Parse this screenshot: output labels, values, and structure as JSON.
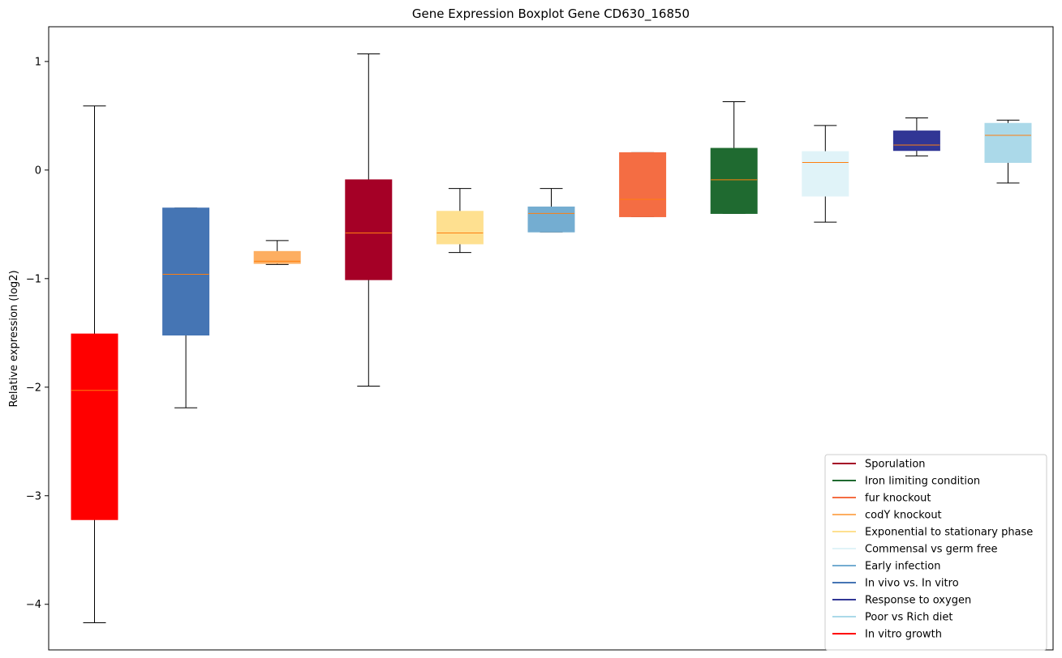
{
  "chart_data": {
    "type": "boxplot",
    "title": "Gene Expression Boxplot Gene CD630_16850",
    "xlabel": "",
    "ylabel": "Relative expression (log2)",
    "ylim": [
      -4.42,
      1.32
    ],
    "yticks": [
      1,
      0,
      -1,
      -2,
      -3,
      -4
    ],
    "ytick_labels": [
      "1",
      "0",
      "−1",
      "−2",
      "−3",
      "−4"
    ],
    "grid": false,
    "median_color": "#ff7f0e",
    "legend_position": "lower-right",
    "boxes": [
      {
        "name": "In vitro growth",
        "color": "#ff0000",
        "whisker_low": -4.17,
        "q1": -3.22,
        "median": -2.03,
        "q3": -1.51,
        "whisker_high": 0.59
      },
      {
        "name": "In vivo vs. In vitro",
        "color": "#4575b4",
        "whisker_low": -2.19,
        "q1": -1.52,
        "median": -0.96,
        "q3": -0.35,
        "whisker_high": -0.35
      },
      {
        "name": "codY knockout",
        "color": "#fdae61",
        "whisker_low": -0.87,
        "q1": -0.86,
        "median": -0.84,
        "q3": -0.75,
        "whisker_high": -0.65
      },
      {
        "name": "Sporulation",
        "color": "#a50026",
        "whisker_low": -1.99,
        "q1": -1.01,
        "median": -0.58,
        "q3": -0.09,
        "whisker_high": 1.07
      },
      {
        "name": "Exponential to stationary phase",
        "color": "#fee090",
        "whisker_low": -0.76,
        "q1": -0.68,
        "median": -0.58,
        "q3": -0.38,
        "whisker_high": -0.17
      },
      {
        "name": "Early infection",
        "color": "#74add1",
        "whisker_low": -0.57,
        "q1": -0.57,
        "median": -0.4,
        "q3": -0.34,
        "whisker_high": -0.17
      },
      {
        "name": "fur knockout",
        "color": "#f46d43",
        "whisker_low": -0.43,
        "q1": -0.43,
        "median": -0.27,
        "q3": 0.16,
        "whisker_high": 0.16
      },
      {
        "name": "Iron limiting condition",
        "color": "#1f6a30",
        "whisker_low": -0.4,
        "q1": -0.4,
        "median": -0.09,
        "q3": 0.2,
        "whisker_high": 0.63
      },
      {
        "name": "Commensal vs germ free",
        "color": "#e0f3f8",
        "whisker_low": -0.48,
        "q1": -0.24,
        "median": 0.07,
        "q3": 0.17,
        "whisker_high": 0.41
      },
      {
        "name": "Response to oxygen",
        "color": "#313695",
        "whisker_low": 0.13,
        "q1": 0.18,
        "median": 0.23,
        "q3": 0.36,
        "whisker_high": 0.48
      },
      {
        "name": "Poor vs Rich diet",
        "color": "#abd9e9",
        "whisker_low": -0.12,
        "q1": 0.07,
        "median": 0.32,
        "q3": 0.43,
        "whisker_high": 0.46
      }
    ],
    "legend": [
      {
        "label": "Sporulation",
        "color": "#a50026"
      },
      {
        "label": "Iron limiting condition",
        "color": "#1f6a30"
      },
      {
        "label": "fur knockout",
        "color": "#f46d43"
      },
      {
        "label": "codY knockout",
        "color": "#fdae61"
      },
      {
        "label": "Exponential to stationary phase",
        "color": "#fee090"
      },
      {
        "label": "Commensal vs germ free",
        "color": "#e0f3f8"
      },
      {
        "label": "Early infection",
        "color": "#74add1"
      },
      {
        "label": "In vivo vs. In vitro",
        "color": "#4575b4"
      },
      {
        "label": "Response to oxygen",
        "color": "#313695"
      },
      {
        "label": "Poor vs Rich diet",
        "color": "#abd9e9"
      },
      {
        "label": "In vitro growth",
        "color": "#ff0000"
      }
    ]
  }
}
